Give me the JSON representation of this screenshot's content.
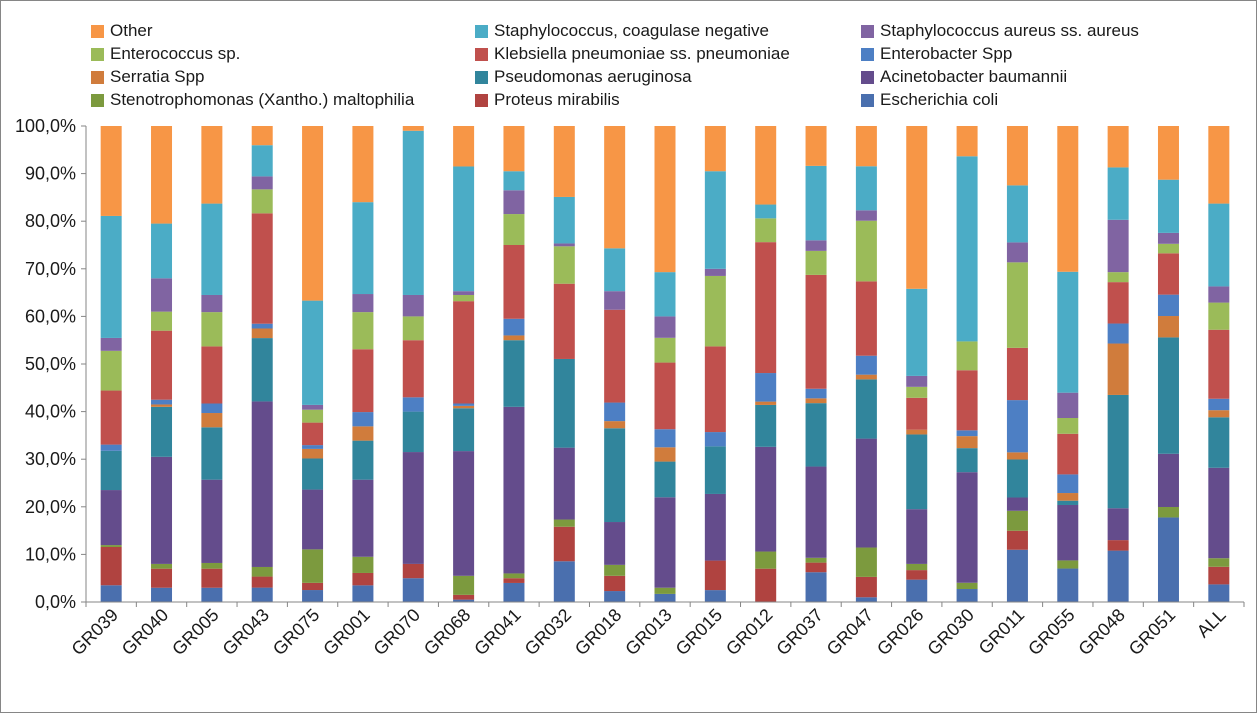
{
  "chart_data": {
    "type": "bar",
    "stacked": "percent",
    "title": "",
    "xlabel": "",
    "ylabel": "",
    "ylim": [
      0,
      100
    ],
    "y_ticks": [
      "0,0%",
      "10,0%",
      "20,0%",
      "30,0%",
      "40,0%",
      "50,0%",
      "60,0%",
      "70,0%",
      "80,0%",
      "90,0%",
      "100,0%"
    ],
    "grid": false,
    "legend_position": "top",
    "categories": [
      "GR039",
      "GR040",
      "GR005",
      "GR043",
      "GR075",
      "GR001",
      "GR070",
      "GR068",
      "GR041",
      "GR032",
      "GR018",
      "GR013",
      "GR015",
      "GR012",
      "GR037",
      "GR047",
      "GR026",
      "GR030",
      "GR011",
      "GR055",
      "GR048",
      "GR051",
      "ALL"
    ],
    "series": [
      {
        "name": "Escherichia coli",
        "color": "#4a6fae",
        "values": [
          3.5,
          3.0,
          3.0,
          3.0,
          2.5,
          3.5,
          5.0,
          0.5,
          4.0,
          8.5,
          2.3,
          1.7,
          2.5,
          0.0,
          6.2,
          1.0,
          4.7,
          2.7,
          11.0,
          7.0,
          10.8,
          17.8,
          3.7
        ]
      },
      {
        "name": "Proteus mirabilis",
        "color": "#b04340",
        "values": [
          8.0,
          4.0,
          4.0,
          2.3,
          1.5,
          2.6,
          3.0,
          1.0,
          1.0,
          7.2,
          3.2,
          0.0,
          6.2,
          7.0,
          2.0,
          4.3,
          2.0,
          0.0,
          4.0,
          0.0,
          2.2,
          0.0,
          3.7
        ]
      },
      {
        "name": "Stenotrophomonas (Xantho.) maltophilia",
        "color": "#7c9a3e",
        "values": [
          0.4,
          1.0,
          1.2,
          2.0,
          7.0,
          3.4,
          0.0,
          4.0,
          1.0,
          1.5,
          2.3,
          1.3,
          0.0,
          3.6,
          1.0,
          6.2,
          1.3,
          1.3,
          4.2,
          1.7,
          0.0,
          2.2,
          1.8
        ]
      },
      {
        "name": "Acinetobacter baumannii",
        "color": "#644c8c",
        "values": [
          11.5,
          22.5,
          17.5,
          34.5,
          12.5,
          16.2,
          23.5,
          26.2,
          35.0,
          15.0,
          9.0,
          19.0,
          14.0,
          22.0,
          19.0,
          23.0,
          11.5,
          23.0,
          2.8,
          11.6,
          6.7,
          11.2,
          19.0
        ]
      },
      {
        "name": "Pseudomonas aeruginosa",
        "color": "#31859c",
        "values": [
          8.2,
          10.5,
          11.0,
          13.2,
          6.5,
          8.2,
          8.5,
          9.0,
          14.0,
          18.5,
          19.7,
          7.5,
          10.0,
          8.8,
          13.2,
          12.5,
          15.7,
          5.0,
          8.0,
          0.9,
          23.8,
          24.5,
          10.6
        ]
      },
      {
        "name": "Serratia Spp",
        "color": "#d07c3c",
        "values": [
          0.0,
          0.5,
          3.0,
          2.0,
          2.0,
          3.0,
          0.0,
          0.5,
          1.0,
          0.0,
          1.5,
          3.0,
          0.0,
          0.7,
          1.0,
          1.0,
          1.0,
          2.5,
          1.5,
          1.6,
          10.8,
          4.5,
          1.5
        ]
      },
      {
        "name": "Enterobacter Spp",
        "color": "#4d7fc4",
        "values": [
          1.3,
          1.0,
          2.0,
          1.0,
          0.8,
          3.0,
          3.0,
          0.5,
          3.5,
          0.0,
          3.9,
          3.8,
          3.0,
          6.0,
          2.0,
          4.0,
          0.0,
          1.2,
          11.0,
          3.9,
          4.2,
          4.5,
          2.4
        ]
      },
      {
        "name": "Klebsiella pneumoniae ss. pneumoniae",
        "color": "#c0504d",
        "values": [
          11.3,
          14.5,
          12.0,
          23.0,
          4.7,
          13.2,
          12.0,
          21.5,
          15.5,
          15.7,
          19.5,
          14.0,
          18.0,
          27.5,
          23.7,
          15.7,
          6.7,
          12.5,
          11.0,
          8.5,
          8.7,
          8.7,
          14.5
        ]
      },
      {
        "name": "Enterococcus sp.",
        "color": "#9bbb59",
        "values": [
          8.3,
          4.0,
          7.2,
          5.0,
          2.7,
          7.8,
          5.0,
          1.3,
          6.5,
          7.8,
          0.0,
          5.2,
          14.8,
          5.0,
          5.0,
          12.8,
          2.3,
          6.0,
          18.0,
          3.3,
          2.1,
          2.0,
          5.7
        ]
      },
      {
        "name": "Staphylococcus aureus ss. aureus",
        "color": "#8064a2",
        "values": [
          2.7,
          7.0,
          3.6,
          2.7,
          1.0,
          3.8,
          4.5,
          0.8,
          5.0,
          0.6,
          3.9,
          4.5,
          1.5,
          0.0,
          2.2,
          2.2,
          2.3,
          0.0,
          4.2,
          5.3,
          11.0,
          2.3,
          3.4
        ]
      },
      {
        "name": "Staphylococcus, coagulase negative",
        "color": "#4bacc6",
        "values": [
          25.5,
          11.5,
          19.2,
          6.5,
          21.8,
          19.3,
          34.5,
          26.2,
          4.0,
          9.7,
          9.0,
          9.3,
          20.5,
          2.9,
          15.5,
          9.3,
          18.3,
          38.5,
          12.0,
          25.3,
          11.0,
          11.2,
          17.4
        ]
      },
      {
        "name": "Other",
        "color": "#f79646",
        "values": [
          18.8,
          20.5,
          16.3,
          4.0,
          36.5,
          16.0,
          1.0,
          8.5,
          9.5,
          14.8,
          25.7,
          30.7,
          9.5,
          16.5,
          8.3,
          8.5,
          34.2,
          6.3,
          12.5,
          30.5,
          8.7,
          11.3,
          16.3
        ]
      }
    ]
  }
}
